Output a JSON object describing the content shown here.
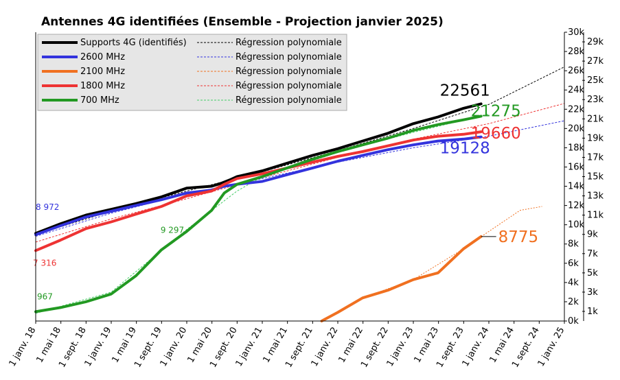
{
  "chart_data": {
    "type": "line",
    "title": "Antennes 4G identifiées (Ensemble - Projection janvier 2025)",
    "x_ticks": [
      "1 janv. 18",
      "1 mai 18",
      "1 sept. 18",
      "1 janv. 19",
      "1 mai 19",
      "1 sept. 19",
      "1 janv. 20",
      "1 mai 20",
      "1 sept. 20",
      "1 janv. 21",
      "1 mai 21",
      "1 sept. 21",
      "1 janv. 22",
      "1 mai 22",
      "1 sept. 22",
      "1 janv. 23",
      "1 mai 23",
      "1 sept. 23",
      "1 janv. 24",
      "1 mai 24",
      "1 sept. 24",
      "1 janv. 25"
    ],
    "x_range": [
      "2018-01-01",
      "2025-01-01"
    ],
    "y_left": {
      "range": [
        0,
        30000
      ],
      "ticks": [
        "0k",
        "2k",
        "4k",
        "6k",
        "8k",
        "10k",
        "12k",
        "14k",
        "16k",
        "18k",
        "20k",
        "22k",
        "24k",
        "26k",
        "28k",
        "30k"
      ]
    },
    "y_right": {
      "range": [
        0,
        30000
      ],
      "ticks": [
        "1k",
        "3k",
        "5k",
        "7k",
        "9k",
        "11k",
        "13k",
        "15k",
        "17k",
        "19k",
        "21k",
        "23k",
        "25k",
        "27k",
        "29k"
      ]
    },
    "grid": false,
    "legend_position": "top-left",
    "series": [
      {
        "name": "Supports 4G (identifiés)",
        "color": "#000000",
        "end_label": "22561",
        "points": [
          [
            "2018-01-01",
            9100
          ],
          [
            "2018-05-01",
            10100
          ],
          [
            "2018-09-01",
            11000
          ],
          [
            "2019-01-01",
            11600
          ],
          [
            "2019-05-01",
            12200
          ],
          [
            "2019-09-01",
            12900
          ],
          [
            "2020-01-01",
            13800
          ],
          [
            "2020-05-01",
            14000
          ],
          [
            "2020-06-15",
            14300
          ],
          [
            "2020-08-01",
            14700
          ],
          [
            "2020-09-01",
            15000
          ],
          [
            "2021-01-01",
            15600
          ],
          [
            "2021-05-01",
            16400
          ],
          [
            "2021-09-01",
            17200
          ],
          [
            "2022-01-01",
            17900
          ],
          [
            "2022-05-01",
            18700
          ],
          [
            "2022-09-01",
            19500
          ],
          [
            "2023-01-01",
            20500
          ],
          [
            "2023-05-01",
            21200
          ],
          [
            "2023-09-01",
            22100
          ],
          [
            "2023-11-25",
            22561
          ]
        ]
      },
      {
        "name": "2600 MHz",
        "color": "#3333dd",
        "start_label": "8 972",
        "end_label": "19128",
        "points": [
          [
            "2018-01-01",
            8972
          ],
          [
            "2018-05-01",
            9900
          ],
          [
            "2018-09-01",
            10800
          ],
          [
            "2019-01-01",
            11400
          ],
          [
            "2019-05-01",
            12000
          ],
          [
            "2019-09-01",
            12600
          ],
          [
            "2020-01-01",
            13300
          ],
          [
            "2020-05-01",
            13600
          ],
          [
            "2020-07-01",
            14000
          ],
          [
            "2020-09-01",
            14200
          ],
          [
            "2021-01-01",
            14500
          ],
          [
            "2021-05-01",
            15200
          ],
          [
            "2021-09-01",
            15900
          ],
          [
            "2022-01-01",
            16600
          ],
          [
            "2022-05-01",
            17200
          ],
          [
            "2022-09-01",
            17800
          ],
          [
            "2023-01-01",
            18300
          ],
          [
            "2023-05-01",
            18700
          ],
          [
            "2023-09-01",
            18900
          ],
          [
            "2023-11-25",
            19128
          ]
        ]
      },
      {
        "name": "2100 MHz",
        "color": "#f07020",
        "end_label": "8775",
        "points": [
          [
            "2021-10-15",
            0
          ],
          [
            "2021-11-01",
            200
          ],
          [
            "2022-01-01",
            900
          ],
          [
            "2022-05-01",
            2400
          ],
          [
            "2022-09-01",
            3200
          ],
          [
            "2023-01-01",
            4300
          ],
          [
            "2023-05-01",
            5000
          ],
          [
            "2023-09-01",
            7500
          ],
          [
            "2023-11-25",
            8775
          ]
        ]
      },
      {
        "name": "1800 MHz",
        "color": "#ee3333",
        "start_label": "7 316",
        "end_label": "19660",
        "points": [
          [
            "2018-01-01",
            7316
          ],
          [
            "2018-05-01",
            8400
          ],
          [
            "2018-09-01",
            9600
          ],
          [
            "2019-01-01",
            10300
          ],
          [
            "2019-05-01",
            11100
          ],
          [
            "2019-09-01",
            11900
          ],
          [
            "2020-01-01",
            13000
          ],
          [
            "2020-05-01",
            13500
          ],
          [
            "2020-07-01",
            14200
          ],
          [
            "2020-09-01",
            14800
          ],
          [
            "2021-01-01",
            15300
          ],
          [
            "2021-05-01",
            15900
          ],
          [
            "2021-09-01",
            16500
          ],
          [
            "2022-01-01",
            17100
          ],
          [
            "2022-05-01",
            17600
          ],
          [
            "2022-09-01",
            18200
          ],
          [
            "2023-01-01",
            18800
          ],
          [
            "2023-05-01",
            19200
          ],
          [
            "2023-09-01",
            19400
          ],
          [
            "2023-11-25",
            19660
          ]
        ]
      },
      {
        "name": "700 MHz",
        "color": "#229922",
        "start_label": "967",
        "mid_label": "9 297",
        "end_label": "21275",
        "points": [
          [
            "2018-01-01",
            967
          ],
          [
            "2018-05-01",
            1400
          ],
          [
            "2018-09-01",
            2000
          ],
          [
            "2019-01-01",
            2800
          ],
          [
            "2019-05-01",
            4700
          ],
          [
            "2019-09-01",
            7400
          ],
          [
            "2020-01-01",
            9297
          ],
          [
            "2020-05-01",
            11500
          ],
          [
            "2020-07-01",
            13300
          ],
          [
            "2020-09-01",
            14200
          ],
          [
            "2021-01-01",
            15000
          ],
          [
            "2021-05-01",
            15900
          ],
          [
            "2021-09-01",
            16800
          ],
          [
            "2022-01-01",
            17600
          ],
          [
            "2022-05-01",
            18300
          ],
          [
            "2022-09-01",
            19000
          ],
          [
            "2023-01-01",
            19800
          ],
          [
            "2023-05-01",
            20400
          ],
          [
            "2023-09-01",
            20900
          ],
          [
            "2023-11-25",
            21275
          ]
        ]
      }
    ],
    "regressions": [
      {
        "name": "Régression polynomiale",
        "for": "Supports 4G (identifiés)",
        "color": "#000000",
        "points": [
          [
            "2018-01-01",
            9000
          ],
          [
            "2019-01-01",
            11400
          ],
          [
            "2020-01-01",
            13500
          ],
          [
            "2021-01-01",
            15500
          ],
          [
            "2022-01-01",
            17700
          ],
          [
            "2023-01-01",
            20000
          ],
          [
            "2024-01-01",
            22500
          ],
          [
            "2025-01-01",
            26400
          ]
        ]
      },
      {
        "name": "Régression polynomiale",
        "for": "2600 MHz",
        "color": "#3333dd",
        "points": [
          [
            "2018-01-01",
            8800
          ],
          [
            "2019-01-01",
            11200
          ],
          [
            "2020-01-01",
            13200
          ],
          [
            "2021-01-01",
            14800
          ],
          [
            "2022-01-01",
            16500
          ],
          [
            "2023-01-01",
            18000
          ],
          [
            "2024-01-01",
            19200
          ],
          [
            "2025-01-01",
            20800
          ]
        ]
      },
      {
        "name": "Régression polynomiale",
        "for": "2100 MHz",
        "color": "#f07020",
        "points": [
          [
            "2021-10-15",
            0
          ],
          [
            "2022-05-01",
            2400
          ],
          [
            "2023-01-01",
            4300
          ],
          [
            "2023-09-01",
            7500
          ],
          [
            "2024-01-01",
            9300
          ],
          [
            "2024-06-01",
            11500
          ],
          [
            "2024-09-15",
            11900
          ]
        ]
      },
      {
        "name": "Régression polynomiale",
        "for": "1800 MHz",
        "color": "#ee3333",
        "points": [
          [
            "2018-01-01",
            8200
          ],
          [
            "2019-01-01",
            10600
          ],
          [
            "2020-01-01",
            12700
          ],
          [
            "2021-01-01",
            14900
          ],
          [
            "2022-01-01",
            17000
          ],
          [
            "2023-01-01",
            18900
          ],
          [
            "2024-01-01",
            20500
          ],
          [
            "2025-01-01",
            22600
          ]
        ]
      },
      {
        "name": "Régression polynomiale",
        "for": "700 MHz",
        "color": "#44cc66",
        "points": [
          [
            "2018-01-01",
            800
          ],
          [
            "2019-01-01",
            3000
          ],
          [
            "2020-01-01",
            9500
          ],
          [
            "2020-09-01",
            13500
          ],
          [
            "2021-01-01",
            15000
          ],
          [
            "2022-01-01",
            17500
          ],
          [
            "2023-01-01",
            19600
          ],
          [
            "2024-01-01",
            21500
          ]
        ]
      }
    ]
  }
}
